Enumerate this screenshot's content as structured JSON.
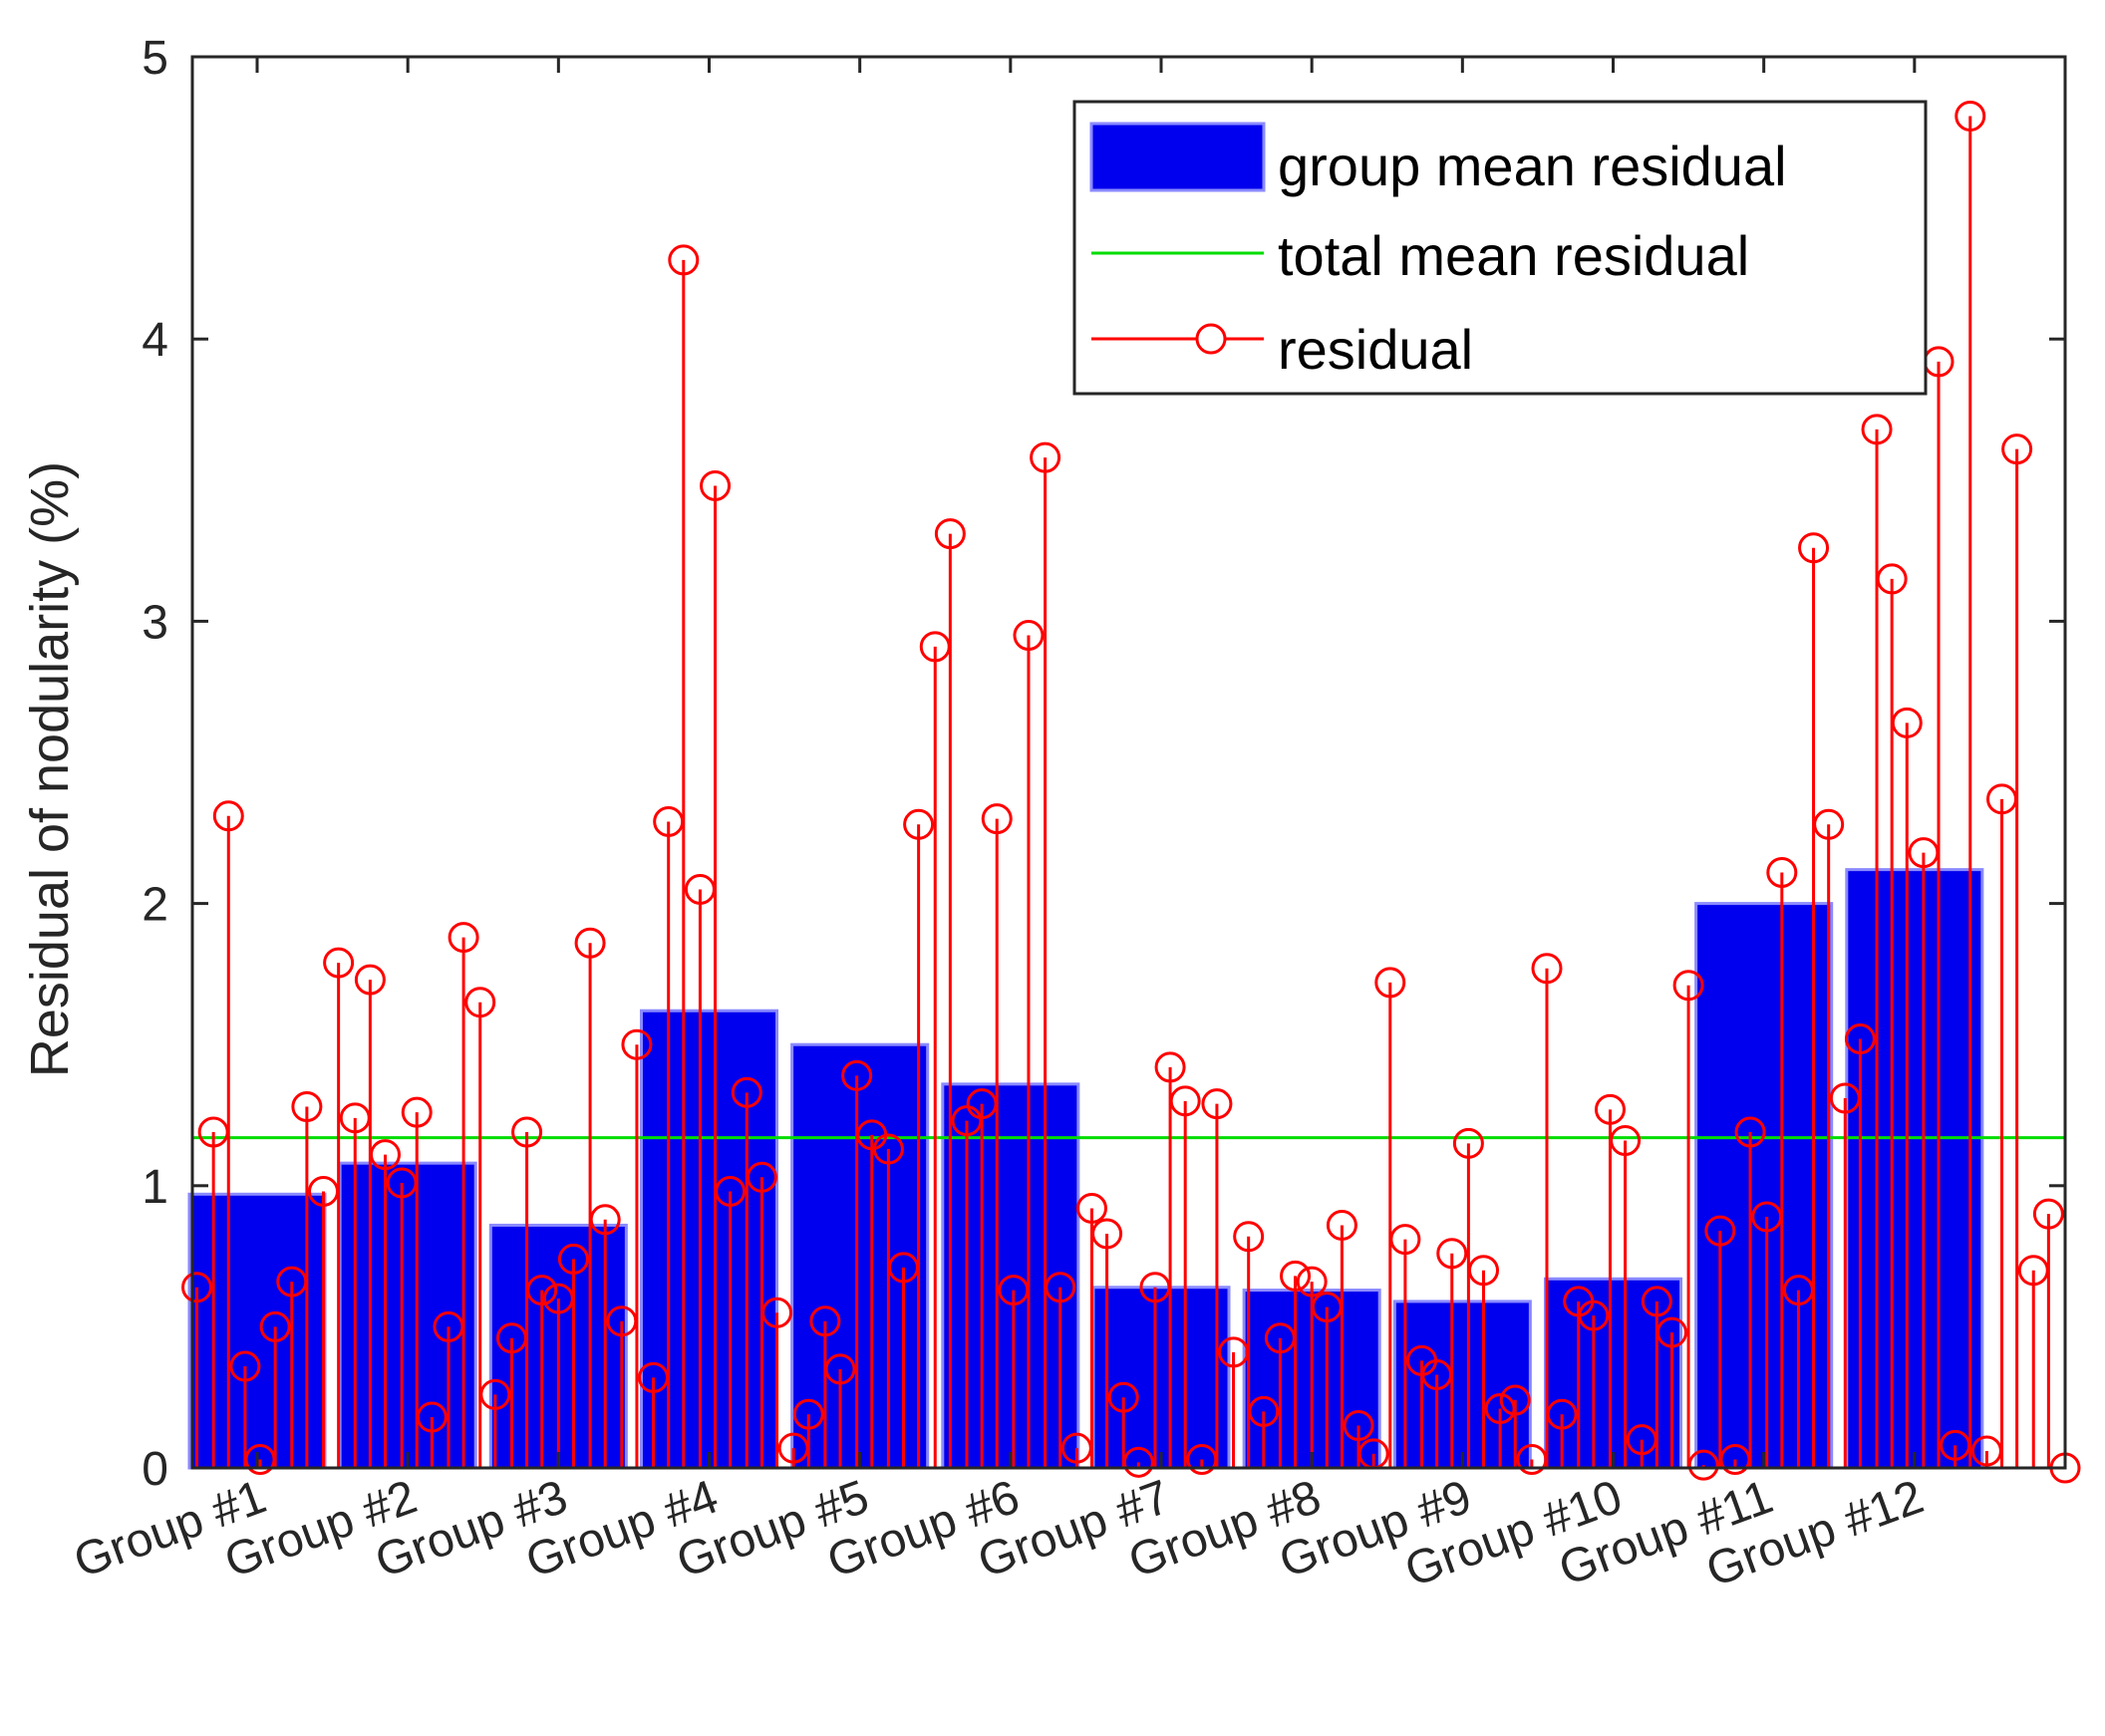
{
  "chart_data": {
    "type": "bar",
    "title": "",
    "xlabel": "",
    "ylabel": "Residual of nodularity (%)",
    "ylim": [
      0,
      5
    ],
    "yticks": [
      "0",
      "1",
      "2",
      "3",
      "4",
      "5"
    ],
    "grid": false,
    "legend_position": "top-right",
    "categories": [
      "Group #1",
      "Group #2",
      "Group #3",
      "Group #4",
      "Group #5",
      "Group #6",
      "Group #7",
      "Group #8",
      "Group #9",
      "Group #10",
      "Group #11",
      "Group #12"
    ],
    "series": [
      {
        "name": "group mean residual",
        "type": "bar",
        "color": "#0000ee",
        "values": [
          0.97,
          1.08,
          0.86,
          1.62,
          1.5,
          1.36,
          0.64,
          0.63,
          0.59,
          0.67,
          2.0,
          2.12
        ]
      },
      {
        "name": "total mean residual",
        "type": "line",
        "color": "#00dd00",
        "value": 1.17
      },
      {
        "name": "residual",
        "type": "stem",
        "color": "#ff0000",
        "x": [
          0.6,
          0.71,
          0.81,
          0.92,
          1.02,
          1.12,
          1.23,
          1.33,
          1.44,
          1.54,
          1.65,
          1.75,
          1.85,
          1.96,
          2.06,
          2.16,
          2.27,
          2.37,
          2.48,
          2.58,
          2.69,
          2.79,
          2.89,
          3.0,
          3.1,
          3.21,
          3.31,
          3.42,
          3.52,
          3.63,
          3.73,
          3.83,
          3.94,
          4.04,
          4.14,
          4.25,
          4.35,
          4.45,
          4.56,
          4.66,
          4.77,
          4.87,
          4.98,
          5.08,
          5.19,
          5.29,
          5.39,
          5.5,
          5.6,
          5.71,
          5.81,
          5.91,
          6.02,
          6.12,
          6.23,
          6.33,
          6.44,
          6.54,
          6.64,
          6.75,
          6.85,
          6.96,
          7.06,
          7.16,
          7.27,
          7.37,
          7.48,
          7.58,
          7.68,
          7.79,
          7.89,
          8.0,
          8.1,
          8.2,
          8.31,
          8.41,
          8.52,
          8.62,
          8.73,
          8.83,
          8.93,
          9.04,
          9.14,
          9.25,
          9.35,
          9.46,
          9.56,
          9.66,
          9.77,
          9.87,
          9.98,
          10.08,
          10.19,
          10.29,
          10.39,
          10.5,
          10.6,
          10.71,
          10.81,
          10.91,
          11.02,
          11.12,
          11.23,
          11.33,
          11.43,
          11.54,
          11.64,
          11.75,
          11.85,
          11.95,
          12.06,
          12.16,
          12.27,
          12.37,
          12.48,
          12.58,
          12.68,
          12.79,
          12.89,
          13.0
        ],
        "values": [
          0.64,
          1.19,
          2.31,
          0.36,
          0.03,
          0.5,
          0.66,
          1.28,
          0.98,
          1.79,
          1.24,
          1.73,
          1.11,
          1.01,
          1.26,
          0.18,
          0.5,
          1.88,
          1.65,
          0.26,
          0.46,
          1.19,
          0.63,
          0.6,
          0.74,
          1.86,
          0.88,
          0.52,
          1.5,
          0.32,
          2.29,
          4.28,
          2.05,
          3.48,
          0.98,
          1.33,
          1.03,
          0.55,
          0.07,
          0.19,
          0.52,
          0.35,
          1.39,
          1.18,
          1.13,
          0.71,
          2.28,
          2.91,
          3.31,
          1.23,
          1.29,
          2.3,
          0.63,
          2.95,
          3.58,
          0.64,
          0.07,
          0.92,
          0.83,
          0.25,
          0.02,
          0.64,
          1.42,
          1.3,
          0.03,
          1.29,
          0.41,
          0.82,
          0.2,
          0.46,
          0.68,
          0.66,
          0.57,
          0.86,
          0.15,
          0.05,
          1.72,
          0.81,
          0.38,
          0.33,
          0.76,
          1.15,
          0.7,
          0.21,
          0.24,
          0.03,
          1.77,
          0.19,
          0.59,
          0.54,
          1.27,
          1.16,
          0.1,
          0.59,
          0.48,
          1.71,
          0.01,
          0.84,
          0.03,
          1.19,
          0.89,
          2.11,
          0.63,
          3.26,
          2.28,
          1.31,
          1.52,
          3.68,
          3.15,
          2.64,
          2.18,
          3.92,
          0.08,
          4.79,
          0.06,
          2.37,
          3.61,
          0.7,
          0.9,
          0.0
        ]
      }
    ]
  }
}
